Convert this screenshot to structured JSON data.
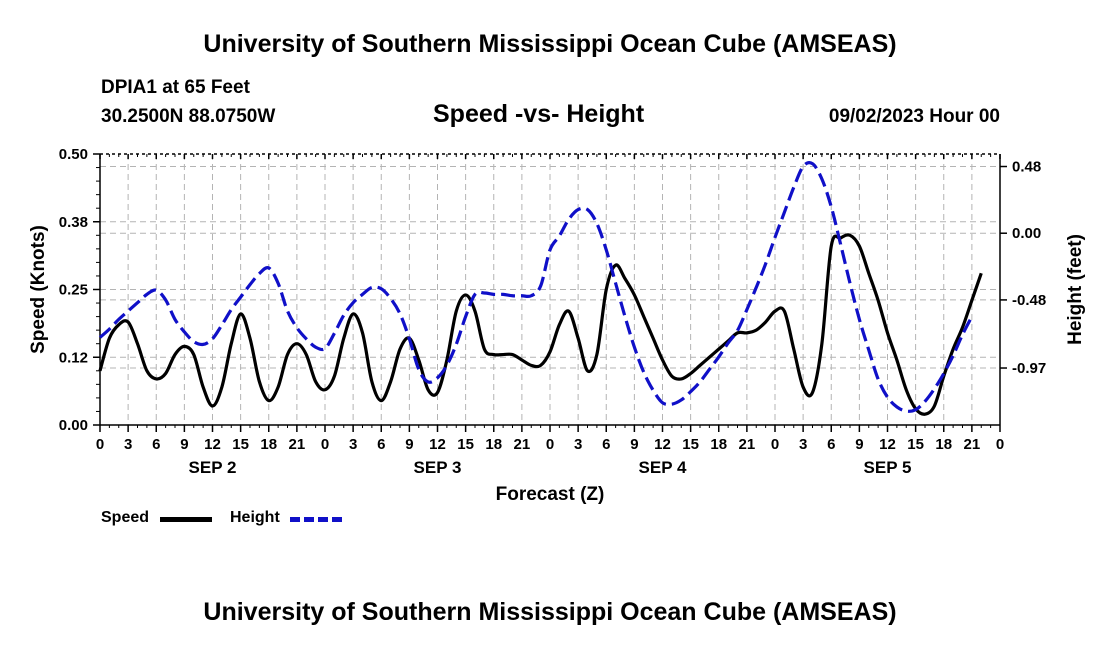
{
  "header": {
    "title": "University of Southern Mississippi Ocean Cube (AMSEAS)",
    "station": "DPIA1 at 65 Feet",
    "coords": "30.2500N  88.0750W",
    "subtitle": "Speed -vs- Height",
    "datetime": "09/02/2023 Hour 00"
  },
  "footer": {
    "title": "University of Southern Mississippi Ocean Cube (AMSEAS)"
  },
  "legend": {
    "speed_label": "Speed",
    "height_label": "Height"
  },
  "colors": {
    "speed": "#000000",
    "height": "#1010c8",
    "grid": "#b4b4b4"
  },
  "chart_data": {
    "type": "line",
    "title": "Speed -vs- Height",
    "xlabel": "Forecast (Z)",
    "ylabel": "Speed (Knots)",
    "y2label": "Height (feet)",
    "xlim": [
      0,
      96
    ],
    "ylim": [
      0,
      0.5
    ],
    "y2lim": [
      -1.38,
      0.57
    ],
    "y_ticks": [
      0.0,
      0.125,
      0.25,
      0.375,
      0.5
    ],
    "y_tick_labels": [
      "0.00",
      "0.12",
      "0.25",
      "0.38",
      "0.50"
    ],
    "y2_ticks": [
      -0.97,
      -0.48,
      0.0,
      0.48
    ],
    "y2_tick_labels": [
      "-0.97",
      "-0.48",
      "0.00",
      "0.48"
    ],
    "x_tick_labels": [
      "0",
      "3",
      "6",
      "9",
      "12",
      "15",
      "18",
      "21",
      "0",
      "3",
      "6",
      "9",
      "12",
      "15",
      "18",
      "21",
      "0",
      "3",
      "6",
      "9",
      "12",
      "15",
      "18",
      "21",
      "0",
      "3",
      "6",
      "9",
      "12",
      "15",
      "18",
      "21",
      "0"
    ],
    "day_labels": [
      {
        "label": "SEP 2",
        "hour": 12
      },
      {
        "label": "SEP 3",
        "hour": 36
      },
      {
        "label": "SEP 4",
        "hour": 60
      },
      {
        "label": "SEP 5",
        "hour": 84
      }
    ],
    "grid": true,
    "series": [
      {
        "name": "Speed",
        "axis": "left",
        "style": "solid",
        "points": [
          [
            0,
            0.1
          ],
          [
            1,
            0.16
          ],
          [
            2,
            0.185
          ],
          [
            3,
            0.19
          ],
          [
            4,
            0.15
          ],
          [
            5,
            0.1
          ],
          [
            6,
            0.085
          ],
          [
            7,
            0.095
          ],
          [
            8,
            0.13
          ],
          [
            9,
            0.145
          ],
          [
            10,
            0.13
          ],
          [
            11,
            0.07
          ],
          [
            12,
            0.035
          ],
          [
            13,
            0.07
          ],
          [
            14,
            0.15
          ],
          [
            15,
            0.205
          ],
          [
            16,
            0.16
          ],
          [
            17,
            0.08
          ],
          [
            18,
            0.045
          ],
          [
            19,
            0.07
          ],
          [
            20,
            0.13
          ],
          [
            21,
            0.15
          ],
          [
            22,
            0.13
          ],
          [
            23,
            0.08
          ],
          [
            24,
            0.065
          ],
          [
            25,
            0.09
          ],
          [
            26,
            0.16
          ],
          [
            27,
            0.205
          ],
          [
            28,
            0.17
          ],
          [
            29,
            0.08
          ],
          [
            30,
            0.045
          ],
          [
            31,
            0.08
          ],
          [
            32,
            0.14
          ],
          [
            33,
            0.16
          ],
          [
            34,
            0.12
          ],
          [
            35,
            0.065
          ],
          [
            36,
            0.06
          ],
          [
            37,
            0.12
          ],
          [
            38,
            0.21
          ],
          [
            39,
            0.24
          ],
          [
            40,
            0.21
          ],
          [
            41,
            0.14
          ],
          [
            42,
            0.13
          ],
          [
            43,
            0.13
          ],
          [
            44,
            0.13
          ],
          [
            45,
            0.12
          ],
          [
            46,
            0.11
          ],
          [
            47,
            0.11
          ],
          [
            48,
            0.135
          ],
          [
            49,
            0.185
          ],
          [
            50,
            0.21
          ],
          [
            51,
            0.16
          ],
          [
            52,
            0.1
          ],
          [
            53,
            0.13
          ],
          [
            54,
            0.25
          ],
          [
            55,
            0.295
          ],
          [
            56,
            0.27
          ],
          [
            57,
            0.24
          ],
          [
            58,
            0.2
          ],
          [
            59,
            0.16
          ],
          [
            60,
            0.12
          ],
          [
            61,
            0.09
          ],
          [
            62,
            0.085
          ],
          [
            63,
            0.095
          ],
          [
            64,
            0.11
          ],
          [
            65,
            0.125
          ],
          [
            66,
            0.14
          ],
          [
            67,
            0.155
          ],
          [
            68,
            0.17
          ],
          [
            69,
            0.17
          ],
          [
            70,
            0.175
          ],
          [
            71,
            0.19
          ],
          [
            72,
            0.21
          ],
          [
            73,
            0.21
          ],
          [
            74,
            0.14
          ],
          [
            75,
            0.07
          ],
          [
            76,
            0.06
          ],
          [
            77,
            0.15
          ],
          [
            78,
            0.33
          ],
          [
            79,
            0.345
          ],
          [
            80,
            0.35
          ],
          [
            81,
            0.33
          ],
          [
            82,
            0.28
          ],
          [
            83,
            0.23
          ],
          [
            84,
            0.17
          ],
          [
            85,
            0.12
          ],
          [
            86,
            0.065
          ],
          [
            87,
            0.03
          ],
          [
            88,
            0.02
          ],
          [
            89,
            0.035
          ],
          [
            90,
            0.09
          ],
          [
            91,
            0.14
          ],
          [
            92,
            0.18
          ],
          [
            93,
            0.23
          ],
          [
            94,
            0.28
          ]
        ]
      },
      {
        "name": "Height",
        "axis": "right",
        "style": "dashed",
        "points": [
          [
            0,
            -0.75
          ],
          [
            1,
            -0.69
          ],
          [
            2,
            -0.62
          ],
          [
            3,
            -0.56
          ],
          [
            4,
            -0.5
          ],
          [
            5,
            -0.44
          ],
          [
            6,
            -0.41
          ],
          [
            7,
            -0.48
          ],
          [
            8,
            -0.62
          ],
          [
            9,
            -0.71
          ],
          [
            10,
            -0.78
          ],
          [
            11,
            -0.8
          ],
          [
            12,
            -0.76
          ],
          [
            13,
            -0.66
          ],
          [
            14,
            -0.55
          ],
          [
            15,
            -0.46
          ],
          [
            16,
            -0.37
          ],
          [
            17,
            -0.29
          ],
          [
            18,
            -0.25
          ],
          [
            19,
            -0.36
          ],
          [
            20,
            -0.56
          ],
          [
            21,
            -0.68
          ],
          [
            22,
            -0.76
          ],
          [
            23,
            -0.82
          ],
          [
            24,
            -0.83
          ],
          [
            25,
            -0.72
          ],
          [
            26,
            -0.59
          ],
          [
            27,
            -0.5
          ],
          [
            28,
            -0.44
          ],
          [
            29,
            -0.39
          ],
          [
            30,
            -0.4
          ],
          [
            31,
            -0.47
          ],
          [
            32,
            -0.58
          ],
          [
            33,
            -0.76
          ],
          [
            34,
            -0.98
          ],
          [
            35,
            -1.07
          ],
          [
            36,
            -1.04
          ],
          [
            37,
            -0.95
          ],
          [
            38,
            -0.8
          ],
          [
            39,
            -0.6
          ],
          [
            40,
            -0.44
          ],
          [
            41,
            -0.43
          ],
          [
            42,
            -0.44
          ],
          [
            43,
            -0.44
          ],
          [
            44,
            -0.45
          ],
          [
            45,
            -0.45
          ],
          [
            46,
            -0.45
          ],
          [
            47,
            -0.38
          ],
          [
            48,
            -0.12
          ],
          [
            49,
            -0.02
          ],
          [
            50,
            0.1
          ],
          [
            51,
            0.17
          ],
          [
            52,
            0.17
          ],
          [
            53,
            0.07
          ],
          [
            54,
            -0.12
          ],
          [
            55,
            -0.36
          ],
          [
            56,
            -0.6
          ],
          [
            57,
            -0.82
          ],
          [
            58,
            -1.0
          ],
          [
            59,
            -1.13
          ],
          [
            60,
            -1.22
          ],
          [
            61,
            -1.23
          ],
          [
            62,
            -1.2
          ],
          [
            63,
            -1.14
          ],
          [
            64,
            -1.07
          ],
          [
            65,
            -0.98
          ],
          [
            66,
            -0.89
          ],
          [
            67,
            -0.79
          ],
          [
            68,
            -0.7
          ],
          [
            69,
            -0.55
          ],
          [
            70,
            -0.39
          ],
          [
            71,
            -0.22
          ],
          [
            72,
            -0.03
          ],
          [
            73,
            0.15
          ],
          [
            74,
            0.33
          ],
          [
            75,
            0.48
          ],
          [
            76,
            0.5
          ],
          [
            77,
            0.39
          ],
          [
            78,
            0.19
          ],
          [
            79,
            -0.08
          ],
          [
            80,
            -0.36
          ],
          [
            81,
            -0.62
          ],
          [
            82,
            -0.84
          ],
          [
            83,
            -1.05
          ],
          [
            84,
            -1.18
          ],
          [
            85,
            -1.25
          ],
          [
            86,
            -1.28
          ],
          [
            87,
            -1.27
          ],
          [
            88,
            -1.21
          ],
          [
            89,
            -1.12
          ],
          [
            90,
            -1.01
          ],
          [
            91,
            -0.88
          ],
          [
            92,
            -0.73
          ],
          [
            93,
            -0.6
          ]
        ]
      }
    ]
  }
}
